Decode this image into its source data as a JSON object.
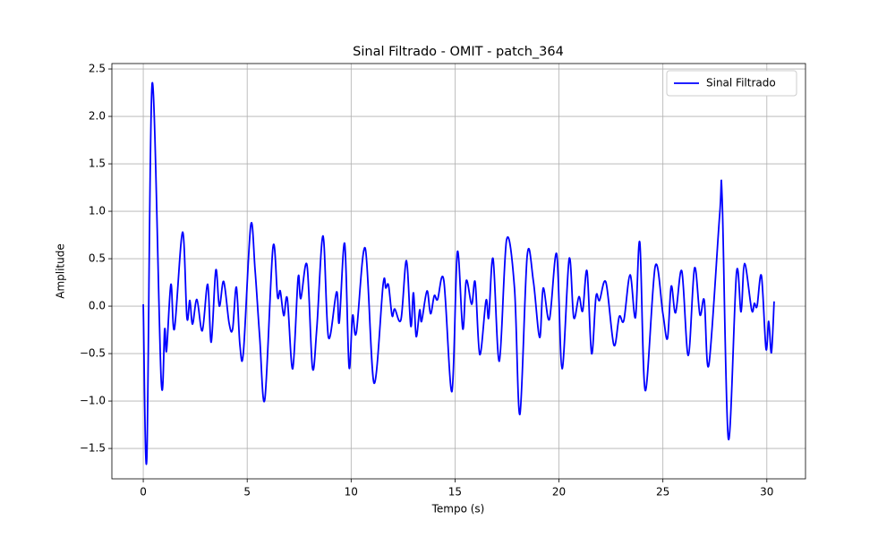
{
  "chart_data": {
    "type": "line",
    "title": "Sinal Filtrado - OMIT - patch_364",
    "x_label": "Tempo (s)",
    "y_label": "Amplitude",
    "x": [
      0,
      0.17,
      0.43,
      0.86,
      1.03,
      1.12,
      1.33,
      1.5,
      1.89,
      2.1,
      2.24,
      2.37,
      2.58,
      2.84,
      3.1,
      3.27,
      3.49,
      3.66,
      3.87,
      4.13,
      4.3,
      4.48,
      4.65,
      4.82,
      5.17,
      5.38,
      5.6,
      5.85,
      6.24,
      6.46,
      6.59,
      6.76,
      6.93,
      7.19,
      7.45,
      7.58,
      7.88,
      8.14,
      8.35,
      8.65,
      8.91,
      9.3,
      9.43,
      9.69,
      9.9,
      10.07,
      10.25,
      10.68,
      11.1,
      11.54,
      11.67,
      11.8,
      11.97,
      12.1,
      12.4,
      12.66,
      12.87,
      13.0,
      13.13,
      13.3,
      13.39,
      13.65,
      13.82,
      14.0,
      14.16,
      14.46,
      14.85,
      15.11,
      15.37,
      15.54,
      15.8,
      15.97,
      16.19,
      16.49,
      16.62,
      16.83,
      17.13,
      17.48,
      17.86,
      18.12,
      18.47,
      18.77,
      19.07,
      19.24,
      19.54,
      19.89,
      20.15,
      20.49,
      20.71,
      20.96,
      21.14,
      21.35,
      21.57,
      21.78,
      21.95,
      22.26,
      22.64,
      22.9,
      23.12,
      23.42,
      23.68,
      23.89,
      24.15,
      24.63,
      25.0,
      25.22,
      25.4,
      25.61,
      25.91,
      26.22,
      26.52,
      26.78,
      26.99,
      27.21,
      27.73,
      27.85,
      28.15,
      28.54,
      28.76,
      28.93,
      29.27,
      29.4,
      29.53,
      29.74,
      29.96,
      30.09,
      30.22,
      30.35
    ],
    "series": [
      {
        "name": "Sinal Filtrado",
        "color": "#0000ff",
        "values": [
          0.02,
          -1.61,
          2.35,
          -0.77,
          -0.24,
          -0.47,
          0.23,
          -0.24,
          0.78,
          -0.12,
          0.06,
          -0.19,
          0.07,
          -0.26,
          0.23,
          -0.38,
          0.38,
          0.0,
          0.26,
          -0.18,
          -0.24,
          0.2,
          -0.41,
          -0.48,
          0.85,
          0.38,
          -0.32,
          -0.98,
          0.62,
          0.1,
          0.16,
          -0.1,
          0.08,
          -0.66,
          0.3,
          0.08,
          0.43,
          -0.65,
          -0.23,
          0.74,
          -0.33,
          0.15,
          -0.17,
          0.66,
          -0.64,
          -0.1,
          -0.28,
          0.61,
          -0.81,
          0.23,
          0.19,
          0.22,
          -0.1,
          -0.03,
          -0.14,
          0.48,
          -0.21,
          0.14,
          -0.32,
          -0.04,
          -0.16,
          0.16,
          -0.08,
          0.11,
          0.07,
          0.27,
          -0.9,
          0.57,
          -0.24,
          0.27,
          0.02,
          0.25,
          -0.51,
          0.06,
          -0.12,
          0.5,
          -0.58,
          0.7,
          0.19,
          -1.14,
          0.53,
          0.26,
          -0.33,
          0.19,
          -0.14,
          0.55,
          -0.66,
          0.5,
          -0.12,
          0.1,
          -0.05,
          0.37,
          -0.5,
          0.1,
          0.06,
          0.25,
          -0.41,
          -0.11,
          -0.15,
          0.33,
          -0.12,
          0.67,
          -0.89,
          0.42,
          -0.08,
          -0.34,
          0.21,
          -0.07,
          0.37,
          -0.52,
          0.4,
          -0.09,
          0.06,
          -0.62,
          0.96,
          1.13,
          -1.4,
          0.35,
          -0.06,
          0.45,
          -0.04,
          0.03,
          0.0,
          0.32,
          -0.45,
          -0.16,
          -0.49,
          0.05
        ]
      }
    ],
    "xlim": [
      -1.51,
      31.86
    ],
    "ylim": [
      -1.82,
      2.557
    ],
    "xticks": [
      0,
      5,
      10,
      15,
      20,
      25,
      30
    ],
    "yticks": [
      {
        "value": -1.5,
        "label": "−1.5"
      },
      {
        "value": -1,
        "label": "−1.0"
      },
      {
        "value": -0.5,
        "label": "−0.5"
      },
      {
        "value": 0,
        "label": "0.0"
      },
      0.5,
      {
        "value": 1,
        "label": "1.0"
      },
      1.5,
      {
        "value": 2,
        "label": "2.0"
      },
      2.5
    ],
    "grid": true,
    "legend": "upper right"
  }
}
